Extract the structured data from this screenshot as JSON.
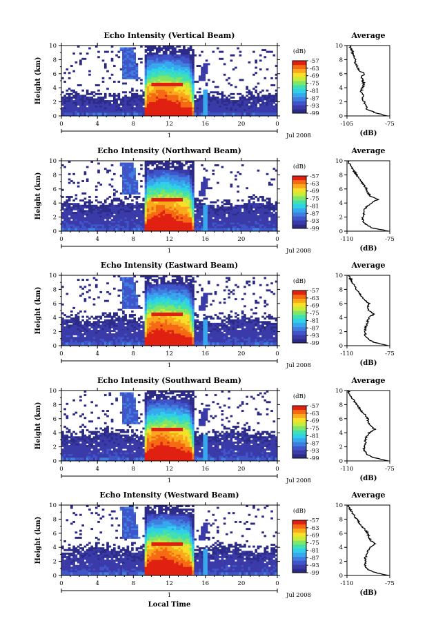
{
  "figure": {
    "x_axis_label": "Local Time",
    "date_label": "Jul 2008",
    "date_day_tick": "1",
    "colorbar_unit": "(dB)",
    "average_title": "Average",
    "average_unit": "(dB)",
    "y_axis_label": "Height (km)"
  },
  "chart_data": [
    {
      "type": "heatmap",
      "title": "Echo Intensity (Vertical Beam)",
      "ylabel": "Height (km)",
      "xlabel": "",
      "x_ticks": [
        "0",
        "4",
        "8",
        "12",
        "16",
        "20",
        "0"
      ],
      "xlim": [
        0,
        24
      ],
      "y_ticks": [
        "0",
        "2",
        "4",
        "6",
        "8",
        "10"
      ],
      "ylim": [
        0,
        10
      ],
      "colorbar": {
        "label": "(dB)",
        "ticks": [
          "-57",
          "-63",
          "-69",
          "-75",
          "-81",
          "-87",
          "-93",
          "-99"
        ],
        "range": [
          -99,
          -57
        ]
      },
      "avg_profile": {
        "title": "Average",
        "xlabel": "(dB)",
        "x_ticks": [
          "-105",
          "-75"
        ],
        "xlim": [
          -105,
          -75
        ],
        "y_ticks": [
          "0",
          "2",
          "4",
          "6",
          "8",
          "10"
        ],
        "height_km": [
          0,
          0.5,
          1,
          1.5,
          2,
          2.5,
          3,
          3.5,
          4,
          4.5,
          5,
          5.5,
          6,
          6.5,
          7,
          7.5,
          8,
          8.5,
          9,
          9.5,
          10
        ],
        "db": [
          -77,
          -86,
          -91,
          -92,
          -93,
          -94,
          -94,
          -95,
          -94,
          -93,
          -94,
          -95,
          -93,
          -97,
          -98,
          -99,
          -99,
          -100,
          -101,
          -102,
          -103
        ]
      },
      "features": {
        "rain_start_hr": 9.3,
        "rain_end_hr": 14.8,
        "melting_layer_km": 4.5,
        "shower_hr": 16.0,
        "low_clutter_top_km": 2.6
      }
    },
    {
      "type": "heatmap",
      "title": "Echo Intensity (Northward Beam)",
      "ylabel": "Height (km)",
      "xlabel": "",
      "x_ticks": [
        "0",
        "4",
        "8",
        "12",
        "16",
        "20",
        "0"
      ],
      "xlim": [
        0,
        24
      ],
      "y_ticks": [
        "0",
        "2",
        "4",
        "6",
        "8",
        "10"
      ],
      "ylim": [
        0,
        10
      ],
      "colorbar": {
        "label": "(dB)",
        "ticks": [
          "-57",
          "-63",
          "-69",
          "-75",
          "-81",
          "-87",
          "-93",
          "-99"
        ],
        "range": [
          -99,
          -57
        ]
      },
      "avg_profile": {
        "title": "Average",
        "xlabel": "(dB)",
        "x_ticks": [
          "-110",
          "-75"
        ],
        "xlim": [
          -110,
          -75
        ],
        "y_ticks": [
          "0",
          "2",
          "4",
          "6",
          "8",
          "10"
        ],
        "height_km": [
          0,
          0.5,
          1,
          1.5,
          2,
          2.5,
          3,
          3.5,
          4,
          4.5,
          5,
          5.5,
          6,
          6.5,
          7,
          7.5,
          8,
          8.5,
          9,
          9.5,
          10
        ],
        "db": [
          -76,
          -90,
          -95,
          -97,
          -97,
          -96,
          -96,
          -94,
          -90,
          -85,
          -91,
          -93,
          -94,
          -96,
          -98,
          -100,
          -102,
          -104,
          -106,
          -108,
          -109
        ]
      },
      "features": {
        "rain_start_hr": 9.3,
        "rain_end_hr": 14.8,
        "melting_layer_km": 4.5,
        "shower_hr": 16.0,
        "low_clutter_top_km": 3.8
      }
    },
    {
      "type": "heatmap",
      "title": "Echo Intensity (Eastward Beam)",
      "ylabel": "Height (km)",
      "xlabel": "",
      "x_ticks": [
        "0",
        "4",
        "8",
        "12",
        "16",
        "20",
        "0"
      ],
      "xlim": [
        0,
        24
      ],
      "y_ticks": [
        "0",
        "2",
        "4",
        "6",
        "8",
        "10"
      ],
      "ylim": [
        0,
        10
      ],
      "colorbar": {
        "label": "(dB)",
        "ticks": [
          "-57",
          "-63",
          "-69",
          "-75",
          "-81",
          "-87",
          "-93",
          "-99"
        ],
        "range": [
          -99,
          -57
        ]
      },
      "avg_profile": {
        "title": "Average",
        "xlabel": "(dB)",
        "x_ticks": [
          "-110",
          "-75"
        ],
        "xlim": [
          -110,
          -75
        ],
        "y_ticks": [
          "0",
          "2",
          "4",
          "6",
          "8",
          "10"
        ],
        "height_km": [
          0,
          0.5,
          1,
          1.5,
          2,
          2.5,
          3,
          3.5,
          4,
          4.5,
          5,
          5.5,
          6,
          6.5,
          7,
          7.5,
          8,
          8.5,
          9,
          9.5,
          10
        ],
        "db": [
          -76,
          -88,
          -93,
          -95,
          -95,
          -95,
          -94,
          -93,
          -92,
          -88,
          -92,
          -93,
          -92,
          -95,
          -98,
          -100,
          -102,
          -104,
          -106,
          -107,
          -109
        ]
      },
      "features": {
        "rain_start_hr": 9.3,
        "rain_end_hr": 14.8,
        "melting_layer_km": 4.5,
        "shower_hr": 16.0,
        "low_clutter_top_km": 3.6
      }
    },
    {
      "type": "heatmap",
      "title": "Echo Intensity (Southward Beam)",
      "ylabel": "Height (km)",
      "xlabel": "",
      "x_ticks": [
        "0",
        "4",
        "8",
        "12",
        "16",
        "20",
        "0"
      ],
      "xlim": [
        0,
        24
      ],
      "y_ticks": [
        "0",
        "2",
        "4",
        "6",
        "8",
        "10"
      ],
      "ylim": [
        0,
        10
      ],
      "colorbar": {
        "label": "(dB)",
        "ticks": [
          "-57",
          "-63",
          "-69",
          "-75",
          "-81",
          "-87",
          "-93",
          "-99"
        ],
        "range": [
          -99,
          -57
        ]
      },
      "avg_profile": {
        "title": "Average",
        "xlabel": "(dB)",
        "x_ticks": [
          "-110",
          "-75"
        ],
        "xlim": [
          -110,
          -75
        ],
        "y_ticks": [
          "0",
          "2",
          "4",
          "6",
          "8",
          "10"
        ],
        "height_km": [
          0,
          0.5,
          1,
          1.5,
          2,
          2.5,
          3,
          3.5,
          4,
          4.5,
          5,
          5.5,
          6,
          6.5,
          7,
          7.5,
          8,
          8.5,
          9,
          9.5,
          10
        ],
        "db": [
          -76,
          -89,
          -94,
          -96,
          -96,
          -95,
          -95,
          -94,
          -92,
          -87,
          -91,
          -93,
          -93,
          -95,
          -98,
          -100,
          -102,
          -104,
          -106,
          -108,
          -109
        ]
      },
      "features": {
        "rain_start_hr": 9.3,
        "rain_end_hr": 14.8,
        "melting_layer_km": 4.5,
        "shower_hr": 16.0,
        "low_clutter_top_km": 3.7
      }
    },
    {
      "type": "heatmap",
      "title": "Echo Intensity (Westward Beam)",
      "ylabel": "Height (km)",
      "xlabel": "Local Time",
      "x_ticks": [
        "0",
        "4",
        "8",
        "12",
        "16",
        "20",
        "0"
      ],
      "xlim": [
        0,
        24
      ],
      "y_ticks": [
        "0",
        "2",
        "4",
        "6",
        "8",
        "10"
      ],
      "ylim": [
        0,
        10
      ],
      "colorbar": {
        "label": "(dB)",
        "ticks": [
          "-57",
          "-63",
          "-69",
          "-75",
          "-81",
          "-87",
          "-93",
          "-99"
        ],
        "range": [
          -99,
          -57
        ]
      },
      "avg_profile": {
        "title": "Average",
        "xlabel": "(dB)",
        "x_ticks": [
          "-110",
          "-75"
        ],
        "xlim": [
          -110,
          -75
        ],
        "y_ticks": [
          "0",
          "2",
          "4",
          "6",
          "8",
          "10"
        ],
        "height_km": [
          0,
          0.5,
          1,
          1.5,
          2,
          2.5,
          3,
          3.5,
          4,
          4.5,
          5,
          5.5,
          6,
          6.5,
          7,
          7.5,
          8,
          8.5,
          9,
          9.5,
          10
        ],
        "db": [
          -76,
          -89,
          -94,
          -95,
          -95,
          -95,
          -94,
          -93,
          -91,
          -87,
          -91,
          -92,
          -93,
          -95,
          -98,
          -100,
          -102,
          -104,
          -106,
          -108,
          -109
        ]
      },
      "features": {
        "rain_start_hr": 9.3,
        "rain_end_hr": 14.8,
        "melting_layer_km": 4.5,
        "shower_hr": 16.0,
        "low_clutter_top_km": 3.6
      }
    }
  ],
  "colors": {
    "colormap": [
      "#2c2c88",
      "#3a3aa8",
      "#3f55c9",
      "#3f7fe0",
      "#38a8ee",
      "#2fd0e8",
      "#40e0b0",
      "#7fe66a",
      "#c8ec3a",
      "#f8e028",
      "#fba81c",
      "#f66a14",
      "#e02010"
    ]
  }
}
